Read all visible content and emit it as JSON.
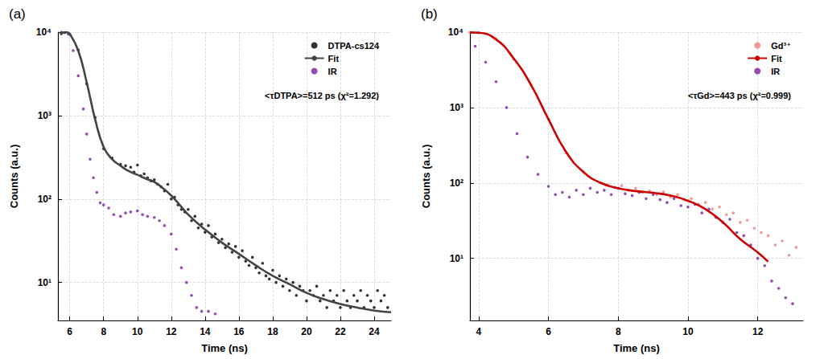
{
  "chart_data": [
    {
      "type": "scatter",
      "title": "(a)",
      "annotations": [
        "<τDTPA>=512 ps (χ²=1.292)"
      ],
      "x_label": "Time (ns)",
      "y_label": "Counts (a.u.)",
      "log": "y",
      "grid": true,
      "legend": "upper right",
      "xlim": [
        5.3,
        25
      ],
      "xticks": [
        6,
        8,
        10,
        12,
        14,
        16,
        18,
        20,
        22,
        24
      ],
      "ylim": [
        3.5,
        10000
      ],
      "yticks": [
        {
          "value": 10,
          "label": "10¹"
        },
        {
          "value": 100,
          "label": "10²"
        },
        {
          "value": 1000,
          "label": "10³"
        },
        {
          "value": 10000,
          "label": "10⁴"
        }
      ],
      "series": [
        {
          "name": "DTPA-cs124",
          "type": "scatter",
          "marker": "circle",
          "color": "#000000",
          "x": [
            5.5,
            5.7,
            6.0,
            6.5,
            7.0,
            7.5,
            8.0,
            8.5,
            9.0,
            9.3,
            9.6,
            9.8,
            10.0,
            10.2,
            10.4,
            10.6,
            10.8,
            11.0,
            11.2,
            11.4,
            11.6,
            11.8,
            12.0,
            12.2,
            12.4,
            12.6,
            12.8,
            13.0,
            13.2,
            13.4,
            13.6,
            13.8,
            14.0,
            14.2,
            14.4,
            14.6,
            14.8,
            15.0,
            15.2,
            15.4,
            15.6,
            15.8,
            16.0,
            16.2,
            16.4,
            16.6,
            16.8,
            17.0,
            17.2,
            17.4,
            17.6,
            17.8,
            18.0,
            18.2,
            18.4,
            18.6,
            18.8,
            19.0,
            19.2,
            19.4,
            19.6,
            19.8,
            20.0,
            20.2,
            20.4,
            20.6,
            20.8,
            21.0,
            21.2,
            21.4,
            21.6,
            21.8,
            22.0,
            22.2,
            22.4,
            22.6,
            22.8,
            23.0,
            23.2,
            23.4,
            23.6,
            23.8,
            24.0,
            24.2,
            24.4,
            24.6,
            24.8
          ],
          "values": [
            9600,
            9900,
            9400,
            6100,
            2400,
            950,
            400,
            310,
            260,
            250,
            240,
            210,
            255,
            190,
            200,
            180,
            165,
            170,
            150,
            140,
            125,
            150,
            100,
            105,
            85,
            75,
            70,
            75,
            55,
            62,
            45,
            50,
            40,
            48,
            35,
            38,
            30,
            33,
            26,
            29,
            23,
            27,
            20,
            24,
            18,
            16,
            20,
            15,
            13,
            17,
            12,
            11,
            14,
            10,
            12,
            9,
            11,
            8,
            10,
            7,
            9,
            8,
            6,
            8,
            7,
            9,
            6,
            7,
            5,
            8,
            6,
            7,
            5,
            8,
            6,
            5,
            7,
            6,
            8,
            5,
            7,
            6,
            5,
            8,
            6,
            7,
            5
          ]
        },
        {
          "name": "Fit",
          "type": "line",
          "line_style": "solid",
          "color": "#444444",
          "x": [
            5.5,
            5.8,
            6.0,
            6.5,
            7.0,
            7.5,
            8.0,
            8.5,
            9.0,
            9.5,
            10.0,
            10.5,
            11.0,
            11.5,
            12.0,
            12.5,
            13.0,
            14.0,
            15.0,
            16.0,
            17.0,
            18.0,
            19.0,
            20.0,
            21.0,
            22.0,
            23.0,
            24.0,
            25.0
          ],
          "values": [
            9800,
            10000,
            9500,
            6000,
            2500,
            900,
            420,
            300,
            250,
            215,
            195,
            175,
            160,
            135,
            110,
            85,
            65,
            43,
            30,
            22,
            16,
            12,
            9.5,
            7.5,
            6.3,
            5.5,
            5,
            4.6,
            4.4
          ]
        },
        {
          "name": "IR",
          "type": "scatter",
          "marker": "circle",
          "color": "#7b1fa2",
          "x": [
            5.5,
            5.9,
            6.2,
            6.5,
            6.8,
            7.0,
            7.2,
            7.4,
            7.6,
            7.8,
            8.0,
            8.3,
            8.6,
            9.0,
            9.3,
            9.6,
            10.0,
            10.3,
            10.6,
            11.0,
            11.3,
            11.6,
            12.0,
            12.3,
            12.6,
            12.9,
            13.2,
            13.5,
            13.8,
            14.2,
            14.6
          ],
          "values": [
            10000,
            9500,
            6000,
            3000,
            1200,
            600,
            300,
            180,
            120,
            90,
            85,
            78,
            65,
            62,
            68,
            70,
            72,
            65,
            62,
            60,
            55,
            48,
            38,
            25,
            15,
            10,
            7,
            5,
            4.5,
            4.5,
            4.2
          ]
        }
      ]
    },
    {
      "type": "scatter",
      "title": "(b)",
      "annotations": [
        "<τGd>=443 ps (χ²=0.999)"
      ],
      "x_label": "Time (ns)",
      "y_label": "Counts (a.u.)",
      "log": "y",
      "grid": true,
      "legend": "upper right",
      "xlim": [
        3.75,
        13.3
      ],
      "xticks": [
        4,
        6,
        8,
        10,
        12
      ],
      "ylim": [
        1.5,
        10000
      ],
      "yticks": [
        {
          "value": 10,
          "label": "10¹"
        },
        {
          "value": 100,
          "label": "10²"
        },
        {
          "value": 1000,
          "label": "10³"
        },
        {
          "value": 10000,
          "label": "10⁴"
        }
      ],
      "series": [
        {
          "name": "Gd³⁺",
          "type": "scatter",
          "marker": "circle",
          "color": "#f08080",
          "x": [
            3.75,
            4.0,
            4.5,
            5.0,
            5.5,
            6.0,
            6.5,
            7.0,
            7.5,
            7.7,
            7.9,
            8.1,
            8.3,
            8.5,
            8.7,
            8.9,
            9.1,
            9.3,
            9.5,
            9.7,
            9.9,
            10.1,
            10.3,
            10.5,
            10.7,
            10.9,
            11.1,
            11.3,
            11.5,
            11.7,
            11.9,
            12.1,
            12.3,
            12.5,
            12.7,
            12.9,
            13.1
          ],
          "values": [
            9900,
            9800,
            8100,
            4400,
            2000,
            700,
            250,
            140,
            100,
            95,
            88,
            92,
            80,
            85,
            75,
            78,
            70,
            76,
            65,
            70,
            60,
            62,
            52,
            55,
            45,
            48,
            38,
            40,
            30,
            32,
            25,
            22,
            20,
            15,
            17,
            11,
            14
          ]
        },
        {
          "name": "Fit",
          "type": "line",
          "line_style": "solid",
          "color": "#cc0000",
          "x": [
            3.75,
            4.0,
            4.5,
            5.0,
            5.5,
            6.0,
            6.5,
            7.0,
            7.5,
            8.0,
            8.5,
            9.0,
            9.5,
            10.0,
            10.5,
            11.0,
            11.5,
            12.0,
            12.3
          ],
          "values": [
            9900,
            9800,
            8000,
            4500,
            2000,
            700,
            260,
            140,
            100,
            85,
            78,
            74,
            68,
            58,
            45,
            30,
            18,
            12,
            9
          ]
        },
        {
          "name": "IR",
          "type": "scatter",
          "marker": "circle",
          "color": "#7b1fa2",
          "x": [
            3.9,
            4.2,
            4.5,
            4.8,
            5.1,
            5.4,
            5.7,
            6.0,
            6.2,
            6.4,
            6.6,
            6.8,
            7.0,
            7.2,
            7.4,
            7.6,
            7.8,
            8.0,
            8.2,
            8.4,
            8.6,
            8.8,
            9.0,
            9.2,
            9.4,
            9.6,
            9.8,
            10.0,
            10.2,
            10.4,
            10.6,
            10.8,
            11.0,
            11.2,
            11.4,
            11.6,
            11.8,
            12.0,
            12.2,
            12.4,
            12.6,
            12.8,
            13.0
          ],
          "values": [
            6500,
            4000,
            2200,
            1000,
            450,
            220,
            130,
            90,
            70,
            75,
            65,
            80,
            70,
            85,
            75,
            80,
            70,
            85,
            72,
            68,
            75,
            62,
            70,
            60,
            55,
            62,
            50,
            48,
            52,
            40,
            45,
            35,
            30,
            33,
            22,
            20,
            15,
            10,
            8,
            5,
            4,
            3,
            2.5
          ]
        }
      ]
    }
  ]
}
